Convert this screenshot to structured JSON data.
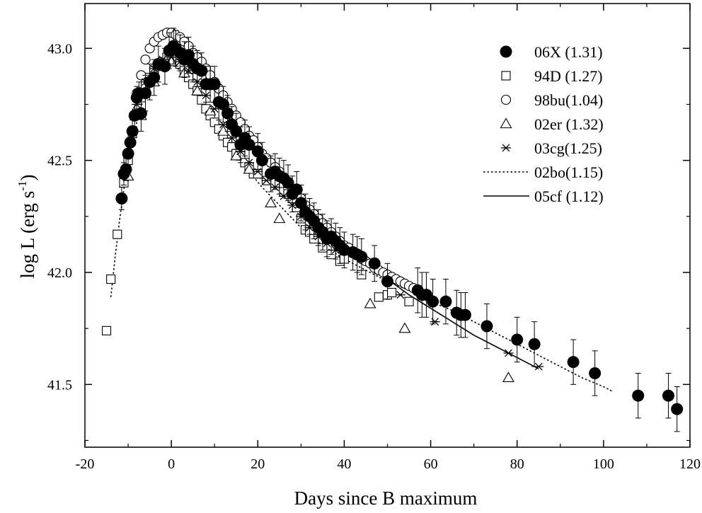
{
  "chart_data": {
    "type": "scatter",
    "title": "",
    "xlabel": "Days since B maximum",
    "ylabel_main": "log L (erg s",
    "ylabel_sup": "-1",
    "ylabel_close": ")",
    "xlim": [
      -20,
      120
    ],
    "ylim": [
      41.22,
      43.2
    ],
    "x_ticks": [
      -20,
      0,
      20,
      40,
      60,
      80,
      100,
      120
    ],
    "x_tick_labels": [
      "-20",
      "0",
      "20",
      "40",
      "60",
      "80",
      "100",
      "120"
    ],
    "y_ticks": [
      41.5,
      42.0,
      42.5,
      43.0
    ],
    "y_tick_labels": [
      "41.5",
      "42.0",
      "42.5",
      "43.0"
    ],
    "grid": false,
    "legend_position": "top-right",
    "series": [
      {
        "name": "06X (1.31)",
        "marker": "filled-circle",
        "x": [
          -11.5,
          -11,
          -10.5,
          -10,
          -9.5,
          -9,
          -8.5,
          -8,
          -7.5,
          -7,
          -6,
          -5,
          -4,
          -3,
          -1.5,
          -0.5,
          0.5,
          1,
          2,
          3,
          4,
          5,
          6,
          7,
          8,
          9,
          10,
          11,
          12,
          13,
          14,
          15,
          16,
          17,
          18,
          20,
          21,
          23,
          24,
          25,
          26,
          27,
          28,
          29,
          30,
          31,
          32,
          33,
          34,
          35,
          36,
          37,
          38,
          39,
          40,
          42,
          43,
          44,
          47,
          50,
          57,
          58,
          59,
          60.5,
          63.5,
          66,
          67,
          68,
          73,
          80,
          84,
          93,
          98,
          108,
          115,
          117
        ],
        "y": [
          42.33,
          42.44,
          42.46,
          42.53,
          42.58,
          42.63,
          42.7,
          42.78,
          42.8,
          42.71,
          42.8,
          42.85,
          42.87,
          42.93,
          42.92,
          42.99,
          43.01,
          43.0,
          42.98,
          42.95,
          42.97,
          42.93,
          42.91,
          42.9,
          42.84,
          42.84,
          42.84,
          42.76,
          42.75,
          42.71,
          42.66,
          42.63,
          42.57,
          42.6,
          42.57,
          42.54,
          42.5,
          42.44,
          42.45,
          42.43,
          42.42,
          42.4,
          42.35,
          42.37,
          42.31,
          42.27,
          42.25,
          42.23,
          42.2,
          42.18,
          42.15,
          42.16,
          42.14,
          42.12,
          42.1,
          42.09,
          42.08,
          42.07,
          42.04,
          41.96,
          41.92,
          41.9,
          41.9,
          41.87,
          41.87,
          41.82,
          41.81,
          41.81,
          41.76,
          41.7,
          41.68,
          41.6,
          41.55,
          41.45,
          41.45,
          41.39
        ],
        "err": [
          0.05,
          0.05,
          0.05,
          0.05,
          0.05,
          0.05,
          0.05,
          0.05,
          0.05,
          0.08,
          0.08,
          0.08,
          0.08,
          0.08,
          0.08,
          0.08,
          0.08,
          0.08,
          0.08,
          0.08,
          0.08,
          0.08,
          0.08,
          0.08,
          0.08,
          0.08,
          0.08,
          0.08,
          0.08,
          0.08,
          0.08,
          0.08,
          0.08,
          0.08,
          0.08,
          0.08,
          0.08,
          0.08,
          0.08,
          0.08,
          0.08,
          0.08,
          0.08,
          0.08,
          0.08,
          0.08,
          0.08,
          0.08,
          0.08,
          0.08,
          0.08,
          0.08,
          0.08,
          0.08,
          0.08,
          0.08,
          0.08,
          0.08,
          0.08,
          0.08,
          0.1,
          0.1,
          0.1,
          0.1,
          0.1,
          0.1,
          0.1,
          0.1,
          0.1,
          0.1,
          0.1,
          0.1,
          0.1,
          0.1,
          0.1,
          0.1
        ]
      },
      {
        "name": "94D (1.27)",
        "marker": "open-square",
        "x": [
          -15,
          -14,
          -12.5,
          -11,
          -10,
          -9,
          -8,
          -7,
          -6,
          -5,
          -4,
          -3,
          -2,
          -1,
          0,
          1,
          2,
          3,
          4,
          5,
          6,
          7,
          8,
          9,
          10,
          11,
          12,
          13,
          14,
          15,
          16,
          17,
          18,
          19,
          20,
          22,
          24,
          26,
          27,
          28,
          29,
          30,
          31,
          32,
          33,
          35,
          37,
          39,
          40,
          44,
          48,
          50,
          51,
          55
        ],
        "y": [
          41.74,
          41.97,
          42.17,
          42.4,
          42.5,
          42.62,
          42.71,
          42.78,
          42.84,
          42.87,
          42.9,
          42.92,
          42.94,
          42.96,
          42.97,
          42.95,
          42.93,
          42.9,
          42.87,
          42.84,
          42.81,
          42.77,
          42.73,
          42.7,
          42.67,
          42.64,
          42.61,
          42.58,
          42.56,
          42.53,
          42.52,
          42.49,
          42.47,
          42.44,
          42.44,
          42.41,
          42.4,
          42.36,
          42.35,
          42.33,
          42.29,
          42.24,
          42.19,
          42.18,
          42.15,
          42.11,
          42.08,
          42.05,
          42.06,
          41.99,
          41.89,
          41.9,
          41.91,
          41.87
        ]
      },
      {
        "name": "98bu(1.04)",
        "marker": "open-circle",
        "x": [
          -8,
          -7,
          -6,
          -5,
          -4,
          -3,
          -2,
          -1,
          0,
          1,
          2,
          3,
          4,
          5,
          6,
          7,
          8,
          9,
          10,
          11,
          12,
          13,
          14,
          15,
          16,
          17,
          18,
          19,
          20,
          21,
          22,
          23,
          24,
          25,
          26,
          27,
          28,
          29,
          30,
          31,
          32,
          33,
          34,
          35,
          36,
          37,
          38,
          39,
          40,
          41,
          42,
          43,
          44,
          45,
          46,
          47,
          48,
          49,
          50,
          51,
          52,
          53,
          54,
          55,
          56,
          57
        ],
        "y": [
          42.8,
          42.88,
          42.95,
          43.0,
          43.03,
          43.05,
          43.06,
          43.07,
          43.07,
          43.06,
          43.05,
          43.03,
          43.01,
          42.98,
          42.96,
          42.94,
          42.91,
          42.88,
          42.85,
          42.82,
          42.79,
          42.76,
          42.73,
          42.7,
          42.67,
          42.64,
          42.61,
          42.59,
          42.56,
          42.53,
          42.51,
          42.49,
          42.47,
          42.45,
          42.42,
          42.4,
          42.37,
          42.35,
          42.33,
          42.3,
          42.28,
          42.26,
          42.24,
          42.22,
          42.2,
          42.18,
          42.16,
          42.14,
          42.12,
          42.11,
          42.09,
          42.08,
          42.06,
          42.05,
          42.04,
          42.02,
          42.01,
          42.0,
          41.99,
          41.98,
          41.97,
          41.96,
          41.95,
          41.94,
          41.93,
          41.92
        ]
      },
      {
        "name": "02er (1.32)",
        "marker": "open-triangle",
        "x": [
          -10,
          -7,
          -4,
          0,
          3,
          6,
          9,
          12,
          15,
          18,
          23,
          25,
          46,
          54,
          78
        ],
        "y": [
          42.43,
          42.7,
          42.85,
          42.94,
          42.89,
          42.81,
          42.72,
          42.63,
          42.52,
          42.46,
          42.31,
          42.24,
          41.86,
          41.75,
          41.53
        ]
      },
      {
        "name": "03cg(1.25)",
        "marker": "asterisk",
        "x": [
          -8,
          -6,
          -4,
          -2,
          0,
          2,
          4,
          6,
          8,
          10,
          12,
          14,
          16,
          18,
          20,
          22,
          24,
          26,
          28,
          30,
          32,
          34,
          36,
          38,
          53,
          61,
          78,
          85
        ],
        "y": [
          42.75,
          42.85,
          42.91,
          42.95,
          42.96,
          42.94,
          42.9,
          42.85,
          42.79,
          42.73,
          42.66,
          42.6,
          42.54,
          42.49,
          42.45,
          42.41,
          42.38,
          42.34,
          42.3,
          42.25,
          42.2,
          42.16,
          42.13,
          42.1,
          41.9,
          41.78,
          41.64,
          41.58
        ]
      },
      {
        "name": "02bo(1.15)",
        "marker": "dotted-line",
        "x": [
          -14,
          -13,
          -12,
          -11,
          -10,
          -9,
          -8,
          -7,
          -6,
          -5,
          -4,
          -3,
          -2,
          -1,
          0,
          1,
          2,
          4,
          6,
          8,
          10,
          12,
          15,
          18,
          21,
          25,
          30,
          35,
          40,
          45,
          50,
          55,
          60,
          65,
          70,
          75,
          80,
          85,
          90,
          95,
          100,
          102
        ],
        "y": [
          41.89,
          42.07,
          42.23,
          42.37,
          42.49,
          42.59,
          42.67,
          42.74,
          42.8,
          42.85,
          42.88,
          42.91,
          42.92,
          42.93,
          42.93,
          42.92,
          42.9,
          42.86,
          42.81,
          42.75,
          42.69,
          42.62,
          42.53,
          42.45,
          42.38,
          42.3,
          42.2,
          42.12,
          42.06,
          42.01,
          41.96,
          41.92,
          41.87,
          41.83,
          41.78,
          41.73,
          41.68,
          41.63,
          41.58,
          41.53,
          41.49,
          41.47
        ]
      },
      {
        "name": "05cf (1.12)",
        "marker": "solid-line",
        "x": [
          43,
          45,
          50,
          55,
          60,
          65,
          70,
          75,
          80,
          85
        ],
        "y": [
          42.07,
          42.04,
          41.97,
          41.9,
          41.84,
          41.78,
          41.72,
          41.67,
          41.62,
          41.57
        ]
      }
    ]
  }
}
